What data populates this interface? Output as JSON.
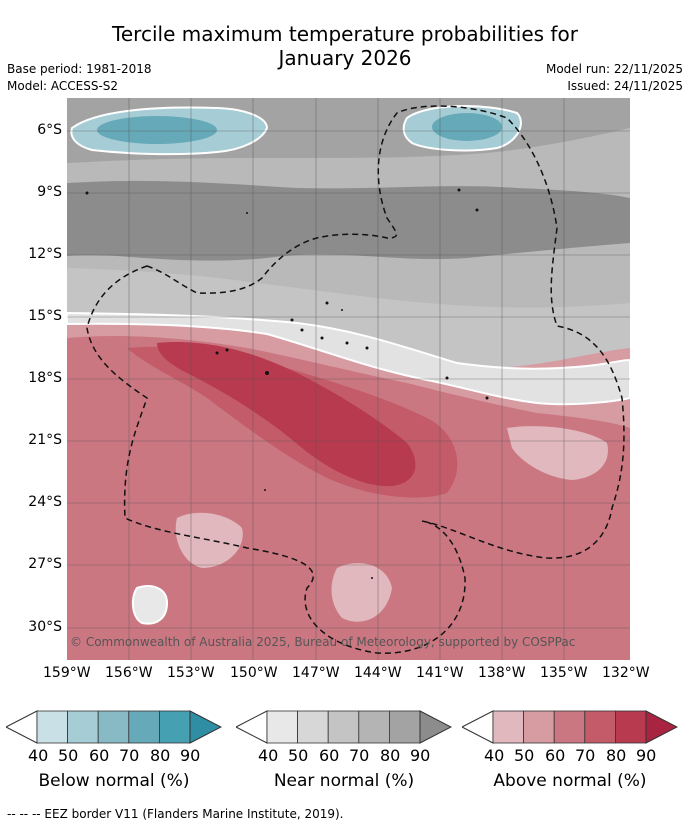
{
  "title": {
    "line1": "Tercile maximum temperature probabilities for",
    "line2": "January 2026"
  },
  "meta": {
    "base_period": "Base period: 1981-2018",
    "model": "Model: ACCESS-S2",
    "model_run": "Model run: 22/11/2025",
    "issued": "Issued: 24/11/2025"
  },
  "map": {
    "y_ticks": [
      "6°S",
      "9°S",
      "12°S",
      "15°S",
      "18°S",
      "21°S",
      "24°S",
      "27°S",
      "30°S"
    ],
    "x_ticks": [
      "159°W",
      "156°W",
      "153°W",
      "150°W",
      "147°W",
      "144°W",
      "141°W",
      "138°W",
      "135°W",
      "132°W"
    ],
    "copyright": "© Commonwealth of Australia 2025, Bureau of Meteorology, supported by COSPPac"
  },
  "colorbars": [
    {
      "label": "Below normal (%)",
      "ticks": [
        "40",
        "50",
        "60",
        "70",
        "80",
        "90"
      ],
      "colors": [
        "#ffffff",
        "#c8e0e6",
        "#a6cdd5",
        "#88bac6",
        "#66a9b8",
        "#45a0b2",
        "#2f8ea4"
      ]
    },
    {
      "label": "Near normal (%)",
      "ticks": [
        "40",
        "50",
        "60",
        "70",
        "80",
        "90"
      ],
      "colors": [
        "#ffffff",
        "#e8e8e8",
        "#d7d7d7",
        "#c4c4c4",
        "#b4b4b4",
        "#a3a3a3",
        "#8c8c8c"
      ]
    },
    {
      "label": "Above normal (%)",
      "ticks": [
        "40",
        "50",
        "60",
        "70",
        "80",
        "90"
      ],
      "colors": [
        "#ffffff",
        "#e1b8bd",
        "#d79ba2",
        "#cb7782",
        "#c35b69",
        "#b83a4f",
        "#a82440"
      ]
    }
  ],
  "footer": "--  --  -- EEZ border V11 (Flanders Marine Institute, 2019)."
}
